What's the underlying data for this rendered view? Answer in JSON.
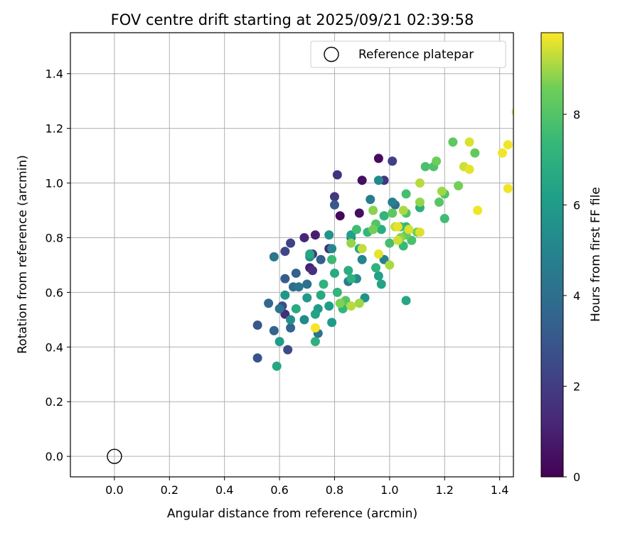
{
  "chart_data": {
    "type": "scatter",
    "title": "FOV centre drift starting at 2025/09/21 02:39:58",
    "xlabel": "Angular distance from reference (arcmin)",
    "ylabel": "Rotation from reference (arcmin)",
    "xlim": [
      -0.16,
      1.45
    ],
    "ylim": [
      -0.075,
      1.55
    ],
    "xticks": [
      "0.0",
      "0.2",
      "0.4",
      "0.6",
      "0.8",
      "1.0",
      "1.2",
      "1.4"
    ],
    "xtick_values": [
      0.0,
      0.2,
      0.4,
      0.6,
      0.8,
      1.0,
      1.2,
      1.4
    ],
    "yticks": [
      "0.0",
      "0.2",
      "0.4",
      "0.6",
      "0.8",
      "1.0",
      "1.2",
      "1.4"
    ],
    "ytick_values": [
      0.0,
      0.2,
      0.4,
      0.6,
      0.8,
      1.0,
      1.2,
      1.4
    ],
    "grid": true,
    "colormap": "viridis",
    "colorbar": {
      "label": "Hours from first FF file",
      "range": [
        0,
        9.8
      ],
      "ticks": [
        "0",
        "2",
        "4",
        "6",
        "8"
      ],
      "tick_values": [
        0,
        2,
        4,
        6,
        8
      ]
    },
    "legend": {
      "position": "top-right",
      "entries": [
        {
          "label": "Reference platepar",
          "marker": "open-circle"
        }
      ]
    },
    "reference_point": {
      "x": 0.0,
      "y": 0.0
    },
    "series": [
      {
        "color_by": "Hours from first FF file",
        "points": [
          [
            0.82,
            0.88,
            0.2
          ],
          [
            0.96,
            1.09,
            0.3
          ],
          [
            0.9,
            1.01,
            0.4
          ],
          [
            0.89,
            0.89,
            0.4
          ],
          [
            0.73,
            0.81,
            0.9
          ],
          [
            0.71,
            0.69,
            1.0
          ],
          [
            0.69,
            0.8,
            1.2
          ],
          [
            0.78,
            0.76,
            1.3
          ],
          [
            0.62,
            0.52,
            1.4
          ],
          [
            0.72,
            0.68,
            1.5
          ],
          [
            0.81,
            1.03,
            1.6
          ],
          [
            0.98,
            1.01,
            1.7
          ],
          [
            0.8,
            0.95,
            1.8
          ],
          [
            0.72,
            0.74,
            1.9
          ],
          [
            1.01,
            1.08,
            2.1
          ],
          [
            0.64,
            0.78,
            2.2
          ],
          [
            0.62,
            0.75,
            2.3
          ],
          [
            0.63,
            0.39,
            2.5
          ],
          [
            0.61,
            0.55,
            2.6
          ],
          [
            0.52,
            0.36,
            2.8
          ],
          [
            0.52,
            0.48,
            3.0
          ],
          [
            0.8,
            0.92,
            3.1
          ],
          [
            0.62,
            0.65,
            3.2
          ],
          [
            0.75,
            0.72,
            3.3
          ],
          [
            0.66,
            0.67,
            3.4
          ],
          [
            0.58,
            0.46,
            3.5
          ],
          [
            0.64,
            0.47,
            3.6
          ],
          [
            0.56,
            0.56,
            3.7
          ],
          [
            0.98,
            0.88,
            3.8
          ],
          [
            1.02,
            0.92,
            3.9
          ],
          [
            0.65,
            0.62,
            4.0
          ],
          [
            0.7,
            0.63,
            4.1
          ],
          [
            0.74,
            0.45,
            4.2
          ],
          [
            0.67,
            0.62,
            4.3
          ],
          [
            0.6,
            0.54,
            4.3
          ],
          [
            0.58,
            0.73,
            4.4
          ],
          [
            0.85,
            0.64,
            4.5
          ],
          [
            0.86,
            0.8,
            4.6
          ],
          [
            0.93,
            0.94,
            4.6
          ],
          [
            0.98,
            0.72,
            4.8
          ],
          [
            1.01,
            0.93,
            4.8
          ],
          [
            0.9,
            0.72,
            5.0
          ],
          [
            0.79,
            0.76,
            5.1
          ],
          [
            0.69,
            0.5,
            5.2
          ],
          [
            0.96,
            1.01,
            5.2
          ],
          [
            0.88,
            0.65,
            5.3
          ],
          [
            0.64,
            0.5,
            5.4
          ],
          [
            0.71,
            0.73,
            5.5
          ],
          [
            0.91,
            0.58,
            5.6
          ],
          [
            0.78,
            0.81,
            5.7
          ],
          [
            0.62,
            0.59,
            5.8
          ],
          [
            0.7,
            0.58,
            5.9
          ],
          [
            0.79,
            0.49,
            6.0
          ],
          [
            0.74,
            0.54,
            6.0
          ],
          [
            0.6,
            0.42,
            6.1
          ],
          [
            0.78,
            0.55,
            6.1
          ],
          [
            0.86,
            0.81,
            6.2
          ],
          [
            0.96,
            0.66,
            6.3
          ],
          [
            0.73,
            0.52,
            6.3
          ],
          [
            0.97,
            0.63,
            6.4
          ],
          [
            0.59,
            0.33,
            6.5
          ],
          [
            0.71,
            0.74,
            6.5
          ],
          [
            1.06,
            0.57,
            6.5
          ],
          [
            0.89,
            0.76,
            6.6
          ],
          [
            0.75,
            0.59,
            6.6
          ],
          [
            0.66,
            0.54,
            6.7
          ],
          [
            0.8,
            0.67,
            6.7
          ],
          [
            0.97,
            0.83,
            6.8
          ],
          [
            0.85,
            0.68,
            6.8
          ],
          [
            1.11,
            0.91,
            6.9
          ],
          [
            0.73,
            0.42,
            7.0
          ],
          [
            0.86,
            0.65,
            7.0
          ],
          [
            0.95,
            0.69,
            7.1
          ],
          [
            0.76,
            0.63,
            7.1
          ],
          [
            0.81,
            0.6,
            7.2
          ],
          [
            0.98,
            0.88,
            7.2
          ],
          [
            0.83,
            0.54,
            7.3
          ],
          [
            0.92,
            0.82,
            7.3
          ],
          [
            1.06,
            0.84,
            7.4
          ],
          [
            1.05,
            0.77,
            7.4
          ],
          [
            0.79,
            0.72,
            7.5
          ],
          [
            1.04,
            0.84,
            7.5
          ],
          [
            0.88,
            0.83,
            7.6
          ],
          [
            1.2,
            0.87,
            7.6
          ],
          [
            1.0,
            0.78,
            7.7
          ],
          [
            1.06,
            0.96,
            7.7
          ],
          [
            1.08,
            0.79,
            7.8
          ],
          [
            1.13,
            1.06,
            7.8
          ],
          [
            1.16,
            1.06,
            7.9
          ],
          [
            1.06,
            0.89,
            7.9
          ],
          [
            0.95,
            0.85,
            8.0
          ],
          [
            1.2,
            0.96,
            8.0
          ],
          [
            0.84,
            0.57,
            8.1
          ],
          [
            1.18,
            0.93,
            8.1
          ],
          [
            1.01,
            0.89,
            8.2
          ],
          [
            1.23,
            1.15,
            8.2
          ],
          [
            1.31,
            1.11,
            8.3
          ],
          [
            1.07,
            0.83,
            8.3
          ],
          [
            1.06,
            0.81,
            8.4
          ],
          [
            1.1,
            0.82,
            8.5
          ],
          [
            1.17,
            1.08,
            8.5
          ],
          [
            0.94,
            0.83,
            8.6
          ],
          [
            1.25,
            0.99,
            8.6
          ],
          [
            0.82,
            0.56,
            8.7
          ],
          [
            1.04,
            0.8,
            8.8
          ],
          [
            0.94,
            0.9,
            8.8
          ],
          [
            1.11,
            0.93,
            8.9
          ],
          [
            0.86,
            0.78,
            8.9
          ],
          [
            1.19,
            0.97,
            9.0
          ],
          [
            0.89,
            0.56,
            9.0
          ],
          [
            1.05,
            0.9,
            9.1
          ],
          [
            1.0,
            0.7,
            9.1
          ],
          [
            0.86,
            0.55,
            9.2
          ],
          [
            1.11,
            1.0,
            9.2
          ],
          [
            1.02,
            0.84,
            9.3
          ],
          [
            0.9,
            0.76,
            9.3
          ],
          [
            1.03,
            0.79,
            9.4
          ],
          [
            1.27,
            1.06,
            9.4
          ],
          [
            1.11,
            0.82,
            9.5
          ],
          [
            1.29,
            1.15,
            9.5
          ],
          [
            1.07,
            0.83,
            9.5
          ],
          [
            0.96,
            0.74,
            9.6
          ],
          [
            1.29,
            1.05,
            9.6
          ],
          [
            1.03,
            0.84,
            9.6
          ],
          [
            1.32,
            0.9,
            9.7
          ],
          [
            1.41,
            1.11,
            9.7
          ],
          [
            1.43,
            1.14,
            9.7
          ],
          [
            1.43,
            0.98,
            9.7
          ],
          [
            0.73,
            0.47,
            9.75
          ],
          [
            1.46,
            1.26,
            9.8
          ]
        ]
      }
    ]
  }
}
